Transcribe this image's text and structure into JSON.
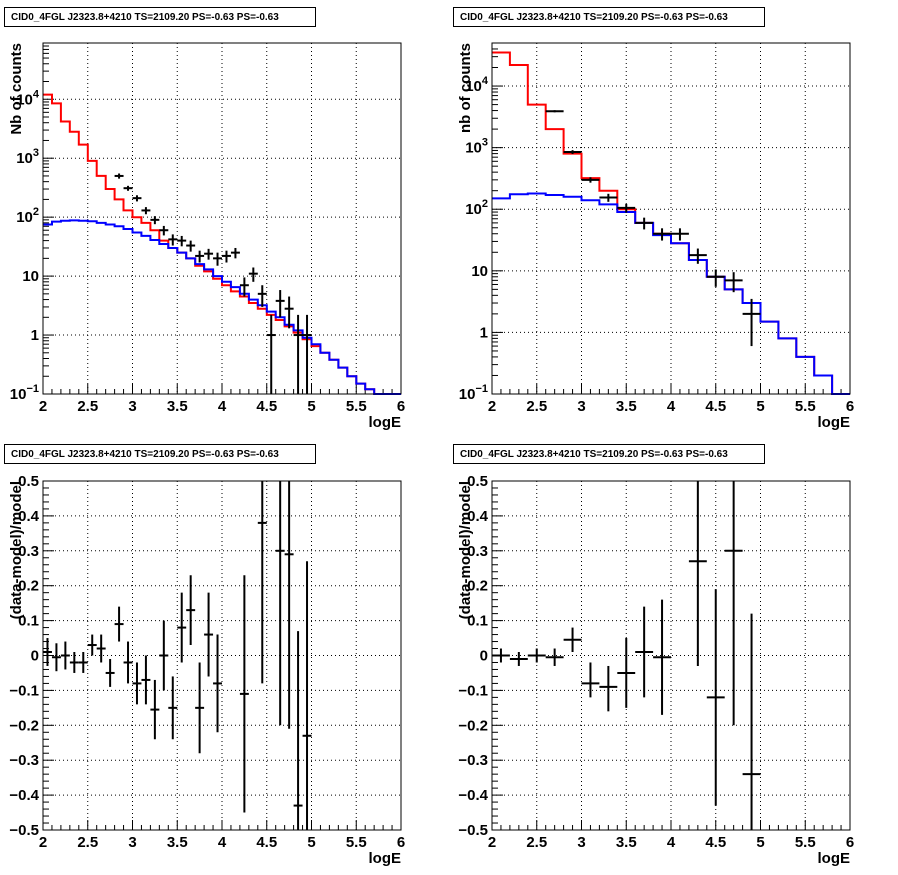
{
  "chart_data": [
    {
      "type": "step-histogram",
      "title": "CID0_4FGL J2323.8+4210 TS=2109.20 PS=-0.63 PS=-0.63",
      "xlabel": "logE",
      "ylabel": "Nb of counts",
      "xlim": [
        2,
        6
      ],
      "ylim": [
        0.1,
        90000
      ],
      "yscale": "log",
      "grid": true,
      "x_tick_labels": [
        "2",
        "2.5",
        "3",
        "3.5",
        "4",
        "4.5",
        "5",
        "5.5",
        "6"
      ],
      "y_tick_labels": [
        {
          "v": 0.1,
          "t": "10",
          "sup": "−1"
        },
        {
          "v": 1,
          "t": "1",
          "sup": ""
        },
        {
          "v": 10,
          "t": "10",
          "sup": ""
        },
        {
          "v": 100,
          "t": "10",
          "sup": "2"
        },
        {
          "v": 1000,
          "t": "10",
          "sup": "3"
        },
        {
          "v": 10000,
          "t": "10",
          "sup": "4"
        }
      ],
      "bin_edges_range": [
        2,
        6
      ],
      "bin_width": 0.1,
      "series": [
        {
          "color": "#ff0000",
          "values": [
            12000,
            8500,
            4200,
            2800,
            1700,
            900,
            500,
            300,
            200,
            130,
            100,
            80,
            60,
            40,
            30,
            25,
            20,
            15,
            12,
            9,
            7,
            5.5,
            4.5,
            3.5,
            2.8,
            2.2,
            1.8,
            1.4,
            1.1,
            0.85,
            0.65,
            0.5,
            0.38,
            0.28,
            0.2,
            0.15,
            0.12,
            0.1,
            0.1,
            0.1
          ]
        },
        {
          "color": "#0000ff",
          "values": [
            75,
            84,
            87,
            88,
            87,
            85,
            80,
            75,
            70,
            63,
            55,
            48,
            41,
            35,
            30,
            25,
            20,
            16,
            13,
            10,
            8,
            6.5,
            5,
            4,
            3.2,
            2.5,
            2,
            1.5,
            1.2,
            0.9,
            0.7,
            0.5,
            0.38,
            0.28,
            0.2,
            0.15,
            0.12,
            0.1,
            0.1,
            0.1
          ]
        }
      ],
      "points": [
        {
          "x": 2.85,
          "y": 500,
          "ylo": 450,
          "yhi": 550
        },
        {
          "x": 2.95,
          "y": 310,
          "ylo": 280,
          "yhi": 340
        },
        {
          "x": 3.05,
          "y": 210,
          "ylo": 185,
          "yhi": 235
        },
        {
          "x": 3.15,
          "y": 130,
          "ylo": 112,
          "yhi": 148
        },
        {
          "x": 3.25,
          "y": 90,
          "ylo": 76,
          "yhi": 104
        },
        {
          "x": 3.35,
          "y": 60,
          "ylo": 49,
          "yhi": 71
        },
        {
          "x": 3.45,
          "y": 42,
          "ylo": 33,
          "yhi": 51
        },
        {
          "x": 3.55,
          "y": 40,
          "ylo": 32,
          "yhi": 48
        },
        {
          "x": 3.65,
          "y": 33,
          "ylo": 26,
          "yhi": 40
        },
        {
          "x": 3.75,
          "y": 22,
          "ylo": 17,
          "yhi": 27
        },
        {
          "x": 3.85,
          "y": 24,
          "ylo": 19,
          "yhi": 29
        },
        {
          "x": 3.95,
          "y": 20,
          "ylo": 15,
          "yhi": 25
        },
        {
          "x": 4.05,
          "y": 22,
          "ylo": 17,
          "yhi": 27
        },
        {
          "x": 4.15,
          "y": 25,
          "ylo": 20,
          "yhi": 30
        },
        {
          "x": 4.25,
          "y": 7,
          "ylo": 4.5,
          "yhi": 9.5
        },
        {
          "x": 4.35,
          "y": 11,
          "ylo": 8,
          "yhi": 14
        },
        {
          "x": 4.45,
          "y": 5,
          "ylo": 3,
          "yhi": 7
        },
        {
          "x": 4.55,
          "y": 1,
          "ylo": 0.1,
          "yhi": 2.2
        },
        {
          "x": 4.65,
          "y": 3.8,
          "ylo": 2,
          "yhi": 5.8
        },
        {
          "x": 4.75,
          "y": 2.8,
          "ylo": 1.3,
          "yhi": 4.5
        },
        {
          "x": 4.85,
          "y": 1,
          "ylo": 0.1,
          "yhi": 2.2
        },
        {
          "x": 4.95,
          "y": 1,
          "ylo": 0.1,
          "yhi": 2.2
        }
      ]
    },
    {
      "type": "step-histogram",
      "title": "CID0_4FGL J2323.8+4210 TS=2109.20 PS=-0.63 PS=-0.63",
      "xlabel": "logE",
      "ylabel": "nb of counts",
      "xlim": [
        2,
        6
      ],
      "ylim": [
        0.1,
        50000
      ],
      "yscale": "log",
      "grid": true,
      "x_tick_labels": [
        "2",
        "2.5",
        "3",
        "3.5",
        "4",
        "4.5",
        "5",
        "5.5",
        "6"
      ],
      "y_tick_labels": [
        {
          "v": 0.1,
          "t": "10",
          "sup": "−1"
        },
        {
          "v": 1,
          "t": "1",
          "sup": ""
        },
        {
          "v": 10,
          "t": "10",
          "sup": ""
        },
        {
          "v": 100,
          "t": "10",
          "sup": "2"
        },
        {
          "v": 1000,
          "t": "10",
          "sup": "3"
        },
        {
          "v": 10000,
          "t": "10",
          "sup": "4"
        }
      ],
      "bin_edges_range": [
        2,
        6
      ],
      "bin_width": 0.2,
      "series": [
        {
          "color": "#ff0000",
          "values": [
            35000,
            22000,
            5000,
            2000,
            800,
            320,
            200,
            100,
            60,
            40,
            28,
            15,
            8,
            5,
            3,
            1.5,
            0.8,
            0.4,
            0.2,
            0.1
          ]
        },
        {
          "color": "#0000ff",
          "values": [
            150,
            175,
            180,
            170,
            160,
            140,
            120,
            90,
            60,
            38,
            28,
            15,
            8,
            5,
            3,
            1.5,
            0.8,
            0.4,
            0.2,
            0.1
          ]
        }
      ],
      "points": [
        {
          "x": 2.7,
          "y": 3900,
          "ylo": 3750,
          "yhi": 4050
        },
        {
          "x": 2.9,
          "y": 850,
          "ylo": 790,
          "yhi": 910
        },
        {
          "x": 3.1,
          "y": 300,
          "ylo": 270,
          "yhi": 330
        },
        {
          "x": 3.3,
          "y": 155,
          "ylo": 132,
          "yhi": 178
        },
        {
          "x": 3.5,
          "y": 105,
          "ylo": 88,
          "yhi": 122
        },
        {
          "x": 3.7,
          "y": 60,
          "ylo": 47,
          "yhi": 73
        },
        {
          "x": 3.9,
          "y": 40,
          "ylo": 31,
          "yhi": 49
        },
        {
          "x": 4.1,
          "y": 40,
          "ylo": 31,
          "yhi": 49
        },
        {
          "x": 4.3,
          "y": 18,
          "ylo": 13,
          "yhi": 23
        },
        {
          "x": 4.5,
          "y": 8,
          "ylo": 5.5,
          "yhi": 10.5
        },
        {
          "x": 4.7,
          "y": 7,
          "ylo": 4.5,
          "yhi": 9.5
        },
        {
          "x": 4.9,
          "y": 2,
          "ylo": 0.6,
          "yhi": 3.5
        }
      ]
    },
    {
      "type": "scatter-errorbar",
      "title": "CID0_4FGL J2323.8+4210 TS=2109.20 PS=-0.63 PS=-0.63",
      "xlabel": "logE",
      "ylabel": "(data-model)/model",
      "xlim": [
        2,
        6
      ],
      "ylim": [
        -0.5,
        0.5
      ],
      "yscale": "linear",
      "grid": true,
      "x_tick_labels": [
        "2",
        "2.5",
        "3",
        "3.5",
        "4",
        "4.5",
        "5",
        "5.5",
        "6"
      ],
      "y_tick_labels": [
        {
          "v": -0.5,
          "t": "−0.5"
        },
        {
          "v": -0.4,
          "t": "−0.4"
        },
        {
          "v": -0.3,
          "t": "−0.3"
        },
        {
          "v": -0.2,
          "t": "−0.2"
        },
        {
          "v": -0.1,
          "t": "−0.1"
        },
        {
          "v": 0,
          "t": "0"
        },
        {
          "v": 0.1,
          "t": "0.1"
        },
        {
          "v": 0.2,
          "t": "0.2"
        },
        {
          "v": 0.3,
          "t": "0.3"
        },
        {
          "v": 0.4,
          "t": "0.4"
        },
        {
          "v": 0.5,
          "t": "0.5"
        }
      ],
      "xerr": 0.05,
      "points": [
        {
          "x": 2.05,
          "y": 0.01,
          "ylo": -0.03,
          "yhi": 0.05
        },
        {
          "x": 2.15,
          "y": -0.005,
          "ylo": -0.045,
          "yhi": 0.035
        },
        {
          "x": 2.25,
          "y": 0.0,
          "ylo": -0.04,
          "yhi": 0.04
        },
        {
          "x": 2.35,
          "y": -0.02,
          "ylo": -0.05,
          "yhi": 0.01
        },
        {
          "x": 2.45,
          "y": -0.02,
          "ylo": -0.05,
          "yhi": 0.01
        },
        {
          "x": 2.55,
          "y": 0.03,
          "ylo": 0.0,
          "yhi": 0.06
        },
        {
          "x": 2.65,
          "y": 0.02,
          "ylo": -0.02,
          "yhi": 0.06
        },
        {
          "x": 2.75,
          "y": -0.05,
          "ylo": -0.09,
          "yhi": -0.01
        },
        {
          "x": 2.85,
          "y": 0.09,
          "ylo": 0.04,
          "yhi": 0.14
        },
        {
          "x": 2.95,
          "y": -0.02,
          "ylo": -0.08,
          "yhi": 0.04
        },
        {
          "x": 3.05,
          "y": -0.08,
          "ylo": -0.14,
          "yhi": -0.02
        },
        {
          "x": 3.15,
          "y": -0.07,
          "ylo": -0.14,
          "yhi": 0.0
        },
        {
          "x": 3.25,
          "y": -0.155,
          "ylo": -0.24,
          "yhi": -0.07
        },
        {
          "x": 3.35,
          "y": 0.0,
          "ylo": -0.1,
          "yhi": 0.1
        },
        {
          "x": 3.45,
          "y": -0.15,
          "ylo": -0.24,
          "yhi": -0.06
        },
        {
          "x": 3.55,
          "y": 0.08,
          "ylo": -0.02,
          "yhi": 0.18
        },
        {
          "x": 3.65,
          "y": 0.13,
          "ylo": 0.03,
          "yhi": 0.23
        },
        {
          "x": 3.75,
          "y": -0.15,
          "ylo": -0.28,
          "yhi": -0.02
        },
        {
          "x": 3.85,
          "y": 0.06,
          "ylo": -0.06,
          "yhi": 0.18
        },
        {
          "x": 3.95,
          "y": -0.08,
          "ylo": -0.22,
          "yhi": 0.06
        },
        {
          "x": 4.25,
          "y": -0.11,
          "ylo": -0.45,
          "yhi": 0.23
        },
        {
          "x": 4.45,
          "y": 0.38,
          "ylo": -0.08,
          "yhi": 0.84
        },
        {
          "x": 4.65,
          "y": 0.3,
          "ylo": -0.2,
          "yhi": 0.8
        },
        {
          "x": 4.75,
          "y": 0.29,
          "ylo": -0.21,
          "yhi": 0.79
        },
        {
          "x": 4.85,
          "y": -0.43,
          "ylo": -0.93,
          "yhi": 0.07
        },
        {
          "x": 4.95,
          "y": -0.23,
          "ylo": -0.73,
          "yhi": 0.27
        }
      ]
    },
    {
      "type": "scatter-errorbar",
      "title": "CID0_4FGL J2323.8+4210 TS=2109.20 PS=-0.63 PS=-0.63",
      "xlabel": "logE",
      "ylabel": "(data-model)/model",
      "xlim": [
        2,
        6
      ],
      "ylim": [
        -0.5,
        0.5
      ],
      "yscale": "linear",
      "grid": true,
      "x_tick_labels": [
        "2",
        "2.5",
        "3",
        "3.5",
        "4",
        "4.5",
        "5",
        "5.5",
        "6"
      ],
      "y_tick_labels": [
        {
          "v": -0.5,
          "t": "−0.5"
        },
        {
          "v": -0.4,
          "t": "−0.4"
        },
        {
          "v": -0.3,
          "t": "−0.3"
        },
        {
          "v": -0.2,
          "t": "−0.2"
        },
        {
          "v": -0.1,
          "t": "−0.1"
        },
        {
          "v": 0,
          "t": "0"
        },
        {
          "v": 0.1,
          "t": "0.1"
        },
        {
          "v": 0.2,
          "t": "0.2"
        },
        {
          "v": 0.3,
          "t": "0.3"
        },
        {
          "v": 0.4,
          "t": "0.4"
        },
        {
          "v": 0.5,
          "t": "0.5"
        }
      ],
      "xerr": 0.1,
      "points": [
        {
          "x": 2.1,
          "y": 0.0,
          "ylo": -0.02,
          "yhi": 0.02
        },
        {
          "x": 2.3,
          "y": -0.01,
          "ylo": -0.03,
          "yhi": 0.01
        },
        {
          "x": 2.5,
          "y": 0.0,
          "ylo": -0.02,
          "yhi": 0.02
        },
        {
          "x": 2.7,
          "y": -0.005,
          "ylo": -0.03,
          "yhi": 0.02
        },
        {
          "x": 2.9,
          "y": 0.045,
          "ylo": 0.01,
          "yhi": 0.08
        },
        {
          "x": 3.1,
          "y": -0.08,
          "ylo": -0.12,
          "yhi": -0.02
        },
        {
          "x": 3.3,
          "y": -0.09,
          "ylo": -0.16,
          "yhi": -0.03
        },
        {
          "x": 3.5,
          "y": -0.05,
          "ylo": -0.15,
          "yhi": 0.05
        },
        {
          "x": 3.7,
          "y": 0.01,
          "ylo": -0.12,
          "yhi": 0.14
        },
        {
          "x": 3.9,
          "y": -0.005,
          "ylo": -0.17,
          "yhi": 0.16
        },
        {
          "x": 4.3,
          "y": 0.27,
          "ylo": -0.03,
          "yhi": 0.57
        },
        {
          "x": 4.5,
          "y": -0.12,
          "ylo": -0.43,
          "yhi": 0.19
        },
        {
          "x": 4.7,
          "y": 0.3,
          "ylo": -0.2,
          "yhi": 0.8
        },
        {
          "x": 4.9,
          "y": -0.34,
          "ylo": -0.8,
          "yhi": 0.12
        }
      ]
    }
  ]
}
